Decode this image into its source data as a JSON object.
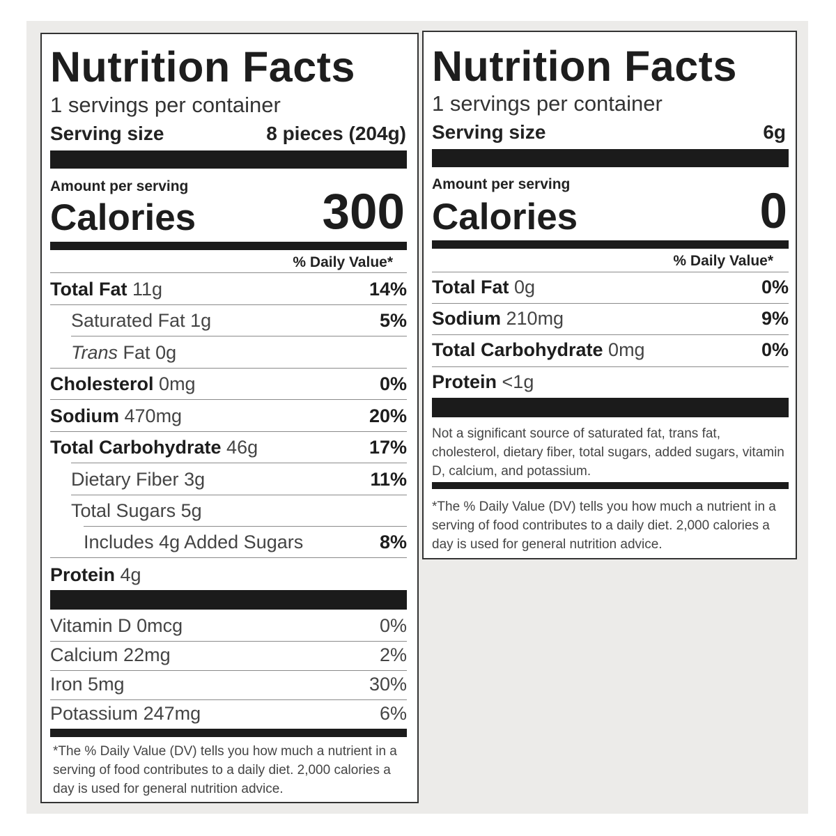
{
  "left": {
    "title": "Nutrition Facts",
    "servings": "1 servings per container",
    "serving_size_label": "Serving size",
    "serving_size_value": "8 pieces (204g)",
    "amount_per_serving": "Amount per serving",
    "calories_label": "Calories",
    "calories_value": "300",
    "dv_header": "% Daily Value*",
    "nutrients": [
      {
        "name": "Total Fat",
        "amount": "11g",
        "dv": "14%"
      },
      {
        "name": "Saturated Fat",
        "amount": "1g",
        "dv": "5%"
      },
      {
        "name_italic": "Trans",
        "name": "Fat",
        "amount": "0g",
        "dv": ""
      },
      {
        "name": "Cholesterol",
        "amount": "0mg",
        "dv": "0%"
      },
      {
        "name": "Sodium",
        "amount": "470mg",
        "dv": "20%"
      },
      {
        "name": "Total Carbohydrate",
        "amount": "46g",
        "dv": "17%"
      },
      {
        "name": "Dietary Fiber",
        "amount": "3g",
        "dv": "11%"
      },
      {
        "name": "Total Sugars",
        "amount": "5g",
        "dv": ""
      },
      {
        "name": "Includes 4g Added Sugars",
        "dv": "8%"
      },
      {
        "name": "Protein",
        "amount": "4g",
        "dv": ""
      }
    ],
    "vitamins": [
      {
        "name": "Vitamin D",
        "amount": "0mcg",
        "dv": "0%"
      },
      {
        "name": "Calcium",
        "amount": "22mg",
        "dv": "2%"
      },
      {
        "name": "Iron",
        "amount": "5mg",
        "dv": "30%"
      },
      {
        "name": "Potassium",
        "amount": "247mg",
        "dv": "6%"
      }
    ],
    "footnote": "*The % Daily Value (DV) tells you how much a nutrient in a serving of food contributes to a daily diet. 2,000 calories a day is used for general nutrition advice."
  },
  "right": {
    "title": "Nutrition Facts",
    "servings": "1 servings per container",
    "serving_size_label": "Serving size",
    "serving_size_value": "6g",
    "amount_per_serving": "Amount per serving",
    "calories_label": "Calories",
    "calories_value": "0",
    "dv_header": "% Daily Value*",
    "nutrients": [
      {
        "name": "Total Fat",
        "amount": "0g",
        "dv": "0%"
      },
      {
        "name": "Sodium",
        "amount": "210mg",
        "dv": "9%"
      },
      {
        "name": "Total Carbohydrate",
        "amount": "0mg",
        "dv": "0%"
      },
      {
        "name": "Protein",
        "amount": "<1g",
        "dv": ""
      }
    ],
    "not_significant": "Not a significant source of saturated fat, trans fat, cholesterol, dietary fiber, total sugars, added sugars, vitamin D, calcium, and potassium.",
    "footnote": "*The % Daily Value (DV) tells you how much a nutrient in a serving of food contributes to a daily diet. 2,000 calories a day is used for general nutrition advice."
  }
}
